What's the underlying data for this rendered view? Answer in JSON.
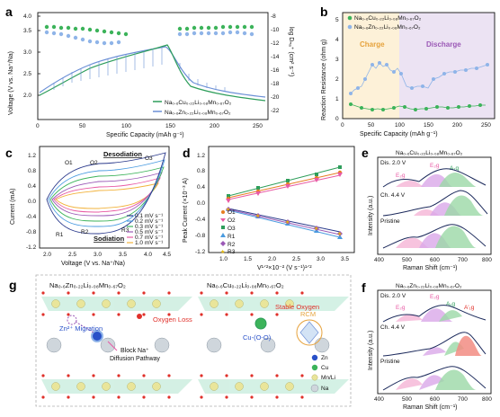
{
  "panels": {
    "a": {
      "letter": "a",
      "xlabel": "Specific Capacity (mAh g⁻¹)",
      "ylabel_left": "Voltage (V vs. Na⁺/Na)",
      "ylabel_right": "log Dₙₐ⁺ (cm² s⁻¹)",
      "x_ticks": [
        "0",
        "50",
        "100",
        "150",
        "200",
        "250"
      ],
      "y_ticks_left": [
        "2.0",
        "2.5",
        "3.0",
        "3.5",
        "4.0",
        "4.5"
      ],
      "y_ticks_right": [
        "-8",
        "-10",
        "-12",
        "-14",
        "-16",
        "-18",
        "-20",
        "-22"
      ],
      "legend": [
        "Na₀.₆Cu₀.₂₂Li₀.₀₈Mn₀.₆₇O₂",
        "Na₀.₆Zn₀.₂₂Li₀.₀₈Mn₀.₆₇O₂"
      ]
    },
    "b": {
      "letter": "b",
      "xlabel": "Specific Capacity (mAh g⁻¹)",
      "ylabel": "Reaction Resistance (ohm g)",
      "x_ticks": [
        "0",
        "50",
        "100",
        "150",
        "200",
        "250"
      ],
      "y_ticks": [
        "0",
        "1",
        "2",
        "3",
        "4",
        "5"
      ],
      "legend": [
        "Na₀.₆Cu₀.₂₂Li₀.₀₈Mn₀.₆₇O₂",
        "Na₀.₆Zn₀.₂₂Li₀.₀₈Mn₀.₆₇O₂"
      ],
      "charge_label": "Charge",
      "discharge_label": "Discharge"
    },
    "c": {
      "letter": "c",
      "xlabel": "Voltage (V vs. Na⁺/Na)",
      "ylabel": "Current (mA)",
      "x_ticks": [
        "2.0",
        "2.5",
        "3.0",
        "3.5",
        "4.0",
        "4.5"
      ],
      "y_ticks": [
        "1.2",
        "0.8",
        "0.4",
        "0.0",
        "-0.4",
        "-0.8",
        "-1.2"
      ],
      "peaks": [
        "O1",
        "O2",
        "O3",
        "R1",
        "R2",
        "R3"
      ],
      "desodiation": "Desodiation",
      "sodiation": "Sodiation",
      "legend": [
        "0.1 mV s⁻¹",
        "0.2 mV s⁻¹",
        "0.3 mV s⁻¹",
        "0.5 mV s⁻¹",
        "0.7 mV s⁻¹",
        "1.0 mV s⁻¹"
      ]
    },
    "d": {
      "letter": "d",
      "xlabel": "V¹ᐟ²×10⁻² (V s⁻¹)¹ᐟ²",
      "ylabel": "Peak Current (×10⁻³ A)",
      "x_ticks": [
        "1.0",
        "1.5",
        "2.0",
        "2.5",
        "3.0",
        "3.5"
      ],
      "y_ticks": [
        "1.2",
        "0.8",
        "0.4",
        "0.0",
        "-0.4",
        "-0.8",
        "-1.2"
      ],
      "legend": [
        "O1",
        "O2",
        "O3",
        "R1",
        "R2",
        "R3"
      ]
    },
    "e": {
      "letter": "e",
      "title": "Na₀.₆Cu₀.₂₂Li₀.₀₈Mn₀.₆₇O₂",
      "xlabel": "Raman Shift (cm⁻¹)",
      "ylabel": "Intensity (a.u.)",
      "x_ticks": [
        "400",
        "500",
        "600",
        "700",
        "800"
      ],
      "states": [
        "Dis. 2.0 V",
        "Ch. 4.4 V",
        "Pristine"
      ],
      "modes": [
        "E₂g",
        "E₂g",
        "A₁g"
      ]
    },
    "f": {
      "letter": "f",
      "title": "Na₀.₆Zn₀.₂₂Li₀.₀₈Mn₀.₆₇O₂",
      "xlabel": "Raman Shift (cm⁻¹)",
      "ylabel": "Intensity (a.u.)",
      "x_ticks": [
        "400",
        "500",
        "600",
        "700",
        "800"
      ],
      "states": [
        "Dis. 2.0 V",
        "Ch. 4.4 V",
        "Pristine"
      ],
      "modes": [
        "E₂g",
        "E₂g",
        "A₁g",
        "A'₁g"
      ]
    },
    "g": {
      "letter": "g",
      "left_title": "Na₀.₆Zn₀.₂₂Li₀.₀₈Mn₀.₆₇O₂",
      "right_title": "Na₀.₆Cu₀.₂₂Li₀.₀₈Mn₀.₆₇O₂",
      "oxygen_loss": "Oxygen Loss",
      "zn_migration": "Zn²⁺ Migration",
      "block_na": "Block Na⁺",
      "diffusion": "Diffusion Pathway",
      "stable_oxygen": "Stable Oxygen",
      "rcm": "RCM",
      "cu_oo": "Cu-(O-O)",
      "species": [
        "Zn",
        "Cu",
        "Mn/Li",
        "Na"
      ]
    }
  },
  "colors": {
    "cu": "#2e9e5b",
    "zn": "#6b8fd6",
    "cu_ball": "#3cb35a",
    "zn_ball": "#8fb4e8"
  }
}
